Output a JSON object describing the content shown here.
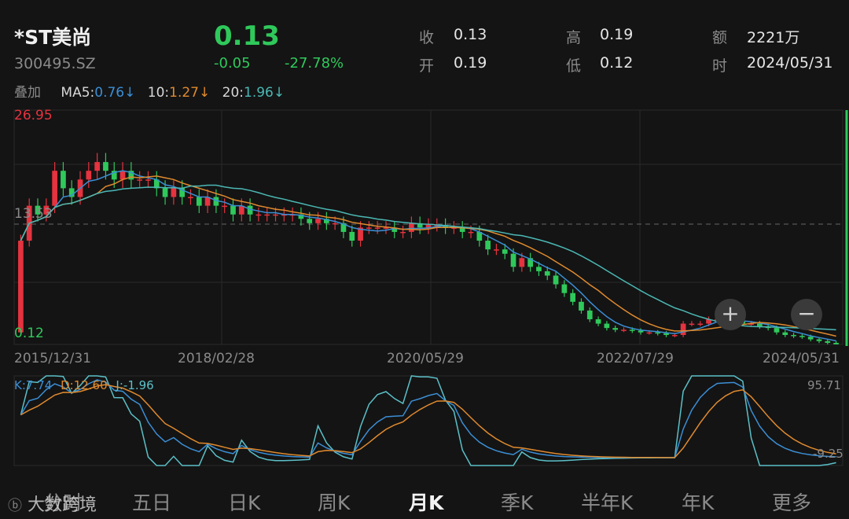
{
  "header": {
    "name": "*ST美尚",
    "code": "300495.SZ",
    "price": "0.13",
    "change": "-0.05",
    "change_pct": "-27.78%",
    "quote": {
      "close_label": "收",
      "close": "0.13",
      "open_label": "开",
      "open": "0.19",
      "high_label": "高",
      "high": "0.19",
      "low_label": "低",
      "low": "0.12",
      "amount_label": "额",
      "amount": "2221万",
      "time_label": "时",
      "time": "2024/05/31"
    }
  },
  "ma": {
    "overlay_label": "叠加",
    "ma5_label": "MA5:",
    "ma5": "0.76↓",
    "ma10_label": "10:",
    "ma10": "1.27↓",
    "ma20_label": "20:",
    "ma20": "1.96↓"
  },
  "price_axis": {
    "max": "26.95",
    "mid": "13.53",
    "min": "0.12"
  },
  "date_axis": [
    "2015/12/31",
    "2018/02/28",
    "2020/05/29",
    "2022/07/29",
    "2024/05/31"
  ],
  "kdj": {
    "k_label": "K:",
    "k": "7.74",
    "d_label": "D:",
    "d": "12.60",
    "j_label": "J:",
    "j": "-1.96",
    "max": "95.71",
    "min": "-9.25"
  },
  "zoom": {
    "in": "+",
    "out": "−"
  },
  "tabs": [
    "分时",
    "五日",
    "日K",
    "周K",
    "月K",
    "季K",
    "半年K",
    "年K",
    "更多"
  ],
  "active_tab": "月K",
  "watermark": "大数跨境",
  "colors": {
    "up": "#e5333f",
    "down": "#2fc95b",
    "ma5": "#3b8fd6",
    "ma10": "#e08a2e",
    "ma20": "#4bb8b4",
    "k": "#3b8fd6",
    "d": "#e08a2e",
    "j": "#5bc0c8"
  },
  "chart_data": [
    {
      "type": "candlestick",
      "title": "",
      "x_range": [
        "2015/12/31",
        "2024/05/31"
      ],
      "ylim": [
        0.12,
        26.95
      ],
      "price_labels": [
        "26.95",
        "13.53",
        "0.12"
      ],
      "series": [
        {
          "name": "MA5",
          "last": 0.76
        },
        {
          "name": "MA10",
          "last": 1.27
        },
        {
          "name": "MA20",
          "last": 1.96
        }
      ],
      "close": [
        12,
        16,
        15,
        16,
        20,
        18,
        17,
        19,
        20,
        21,
        20,
        19,
        20,
        19,
        19,
        19,
        18,
        17,
        18,
        17,
        17,
        16,
        17,
        16,
        16,
        15,
        16,
        15,
        15,
        15,
        15,
        15,
        15,
        14.5,
        14,
        14.5,
        14,
        14,
        13,
        12,
        13.5,
        13.5,
        13.5,
        13.5,
        13,
        13,
        14,
        13.5,
        13.8,
        13.8,
        13.5,
        13.5,
        13,
        13,
        12,
        11,
        11,
        10.5,
        9,
        10,
        9,
        8.5,
        8,
        7,
        6,
        5,
        4,
        3,
        2.5,
        2,
        1.8,
        1.8,
        1.7,
        1.5,
        1.5,
        1.4,
        1.2,
        1.2,
        2.5,
        2.5,
        2.5,
        3,
        3,
        2.8,
        2.8,
        2.5,
        2.5,
        2.2,
        2,
        1.5,
        1.2,
        1.1,
        1.0,
        0.7,
        0.5,
        0.3,
        0.13
      ]
    },
    {
      "type": "line",
      "title": "KDJ",
      "ylim": [
        -9.25,
        95.71
      ],
      "series": [
        {
          "name": "K",
          "last": 7.74
        },
        {
          "name": "D",
          "last": 12.6
        },
        {
          "name": "J",
          "last": -1.96
        }
      ]
    }
  ]
}
